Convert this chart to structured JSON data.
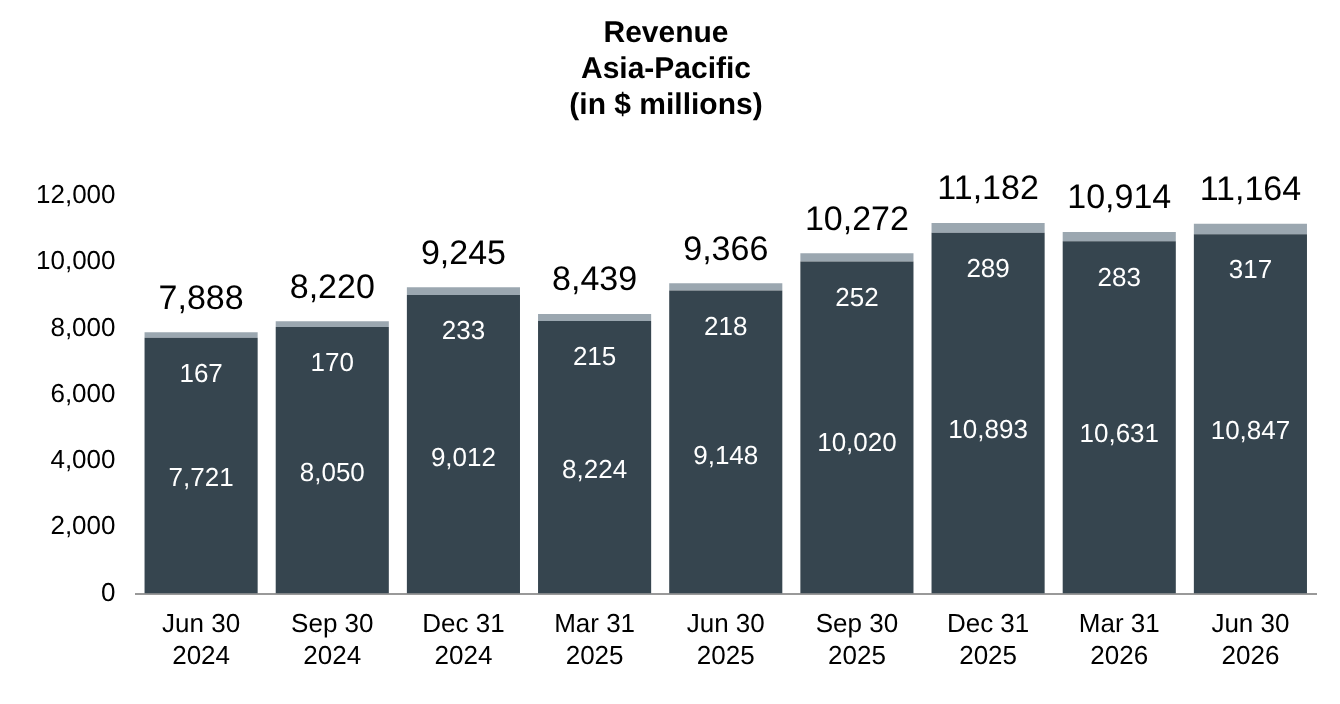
{
  "chart_data": {
    "type": "bar",
    "title": "Revenue\nAsia-Pacific\n(in $ millions)",
    "categories": [
      "Jun 30\n2024",
      "Sep 30\n2024",
      "Dec 31\n2024",
      "Mar 31\n2025",
      "Jun 30\n2025",
      "Sep 30\n2025",
      "Dec 31\n2025",
      "Mar 31\n2026",
      "Jun 30\n2026"
    ],
    "series": [
      {
        "color": "#36454f",
        "values": [
          7721,
          8050,
          9012,
          8224,
          9148,
          10020,
          10893,
          10631,
          10847
        ],
        "value_labels": [
          "7,721",
          "8,050",
          "9,012",
          "8,224",
          "9,148",
          "10,020",
          "10,893",
          "10,631",
          "10,847"
        ]
      },
      {
        "color": "#9ba7b0",
        "values": [
          167,
          170,
          233,
          215,
          218,
          252,
          289,
          283,
          317
        ],
        "value_labels": [
          "167",
          "170",
          "233",
          "215",
          "218",
          "252",
          "289",
          "283",
          "317"
        ]
      }
    ],
    "stacked": true,
    "ylim": [
      0,
      12000
    ],
    "yticks": [
      0,
      {
        "value": 2000,
        "label": "2,000"
      },
      {
        "value": 4000,
        "label": "4,000"
      },
      {
        "value": 6000,
        "label": "6,000"
      },
      {
        "value": 8000,
        "label": "8,000"
      },
      {
        "value": 10000,
        "label": "10,000"
      },
      {
        "value": 12000,
        "label": "12,000"
      }
    ],
    "grid": false,
    "legend": false,
    "totals": [
      "7,888",
      "8,220",
      "9,245",
      "8,439",
      "9,366",
      "10,272",
      "11,182",
      "10,914",
      "11,164"
    ]
  }
}
